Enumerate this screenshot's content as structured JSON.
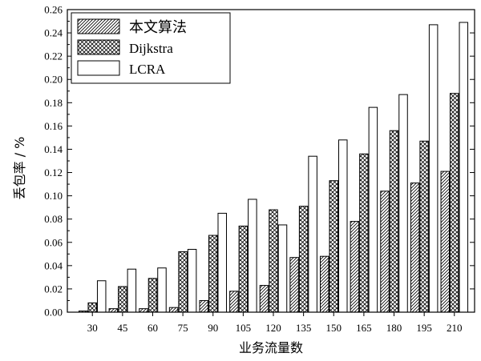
{
  "chart_data": {
    "type": "bar",
    "xlabel": "业务流量数",
    "ylabel": "丢包率 / %",
    "categories": [
      "30",
      "45",
      "60",
      "75",
      "90",
      "105",
      "120",
      "135",
      "150",
      "165",
      "180",
      "195",
      "210"
    ],
    "ylim": [
      0,
      0.26
    ],
    "yticks": [
      "0.00",
      "0.02",
      "0.04",
      "0.06",
      "0.08",
      "0.10",
      "0.12",
      "0.14",
      "0.16",
      "0.18",
      "0.20",
      "0.22",
      "0.24",
      "0.26"
    ],
    "legend_position": "top-left",
    "series": [
      {
        "name": "本文算法",
        "pattern": "diagonal-hatch",
        "values": [
          0.001,
          0.003,
          0.003,
          0.004,
          0.01,
          0.018,
          0.023,
          0.047,
          0.048,
          0.078,
          0.104,
          0.111,
          0.121
        ]
      },
      {
        "name": "Dijkstra",
        "pattern": "crosshatch",
        "values": [
          0.008,
          0.022,
          0.029,
          0.052,
          0.066,
          0.074,
          0.088,
          0.091,
          0.113,
          0.136,
          0.156,
          0.147,
          0.188
        ]
      },
      {
        "name": "LCRA",
        "pattern": "none",
        "values": [
          0.027,
          0.037,
          0.038,
          0.054,
          0.085,
          0.097,
          0.075,
          0.134,
          0.148,
          0.176,
          0.187,
          0.247,
          0.249
        ]
      }
    ]
  }
}
